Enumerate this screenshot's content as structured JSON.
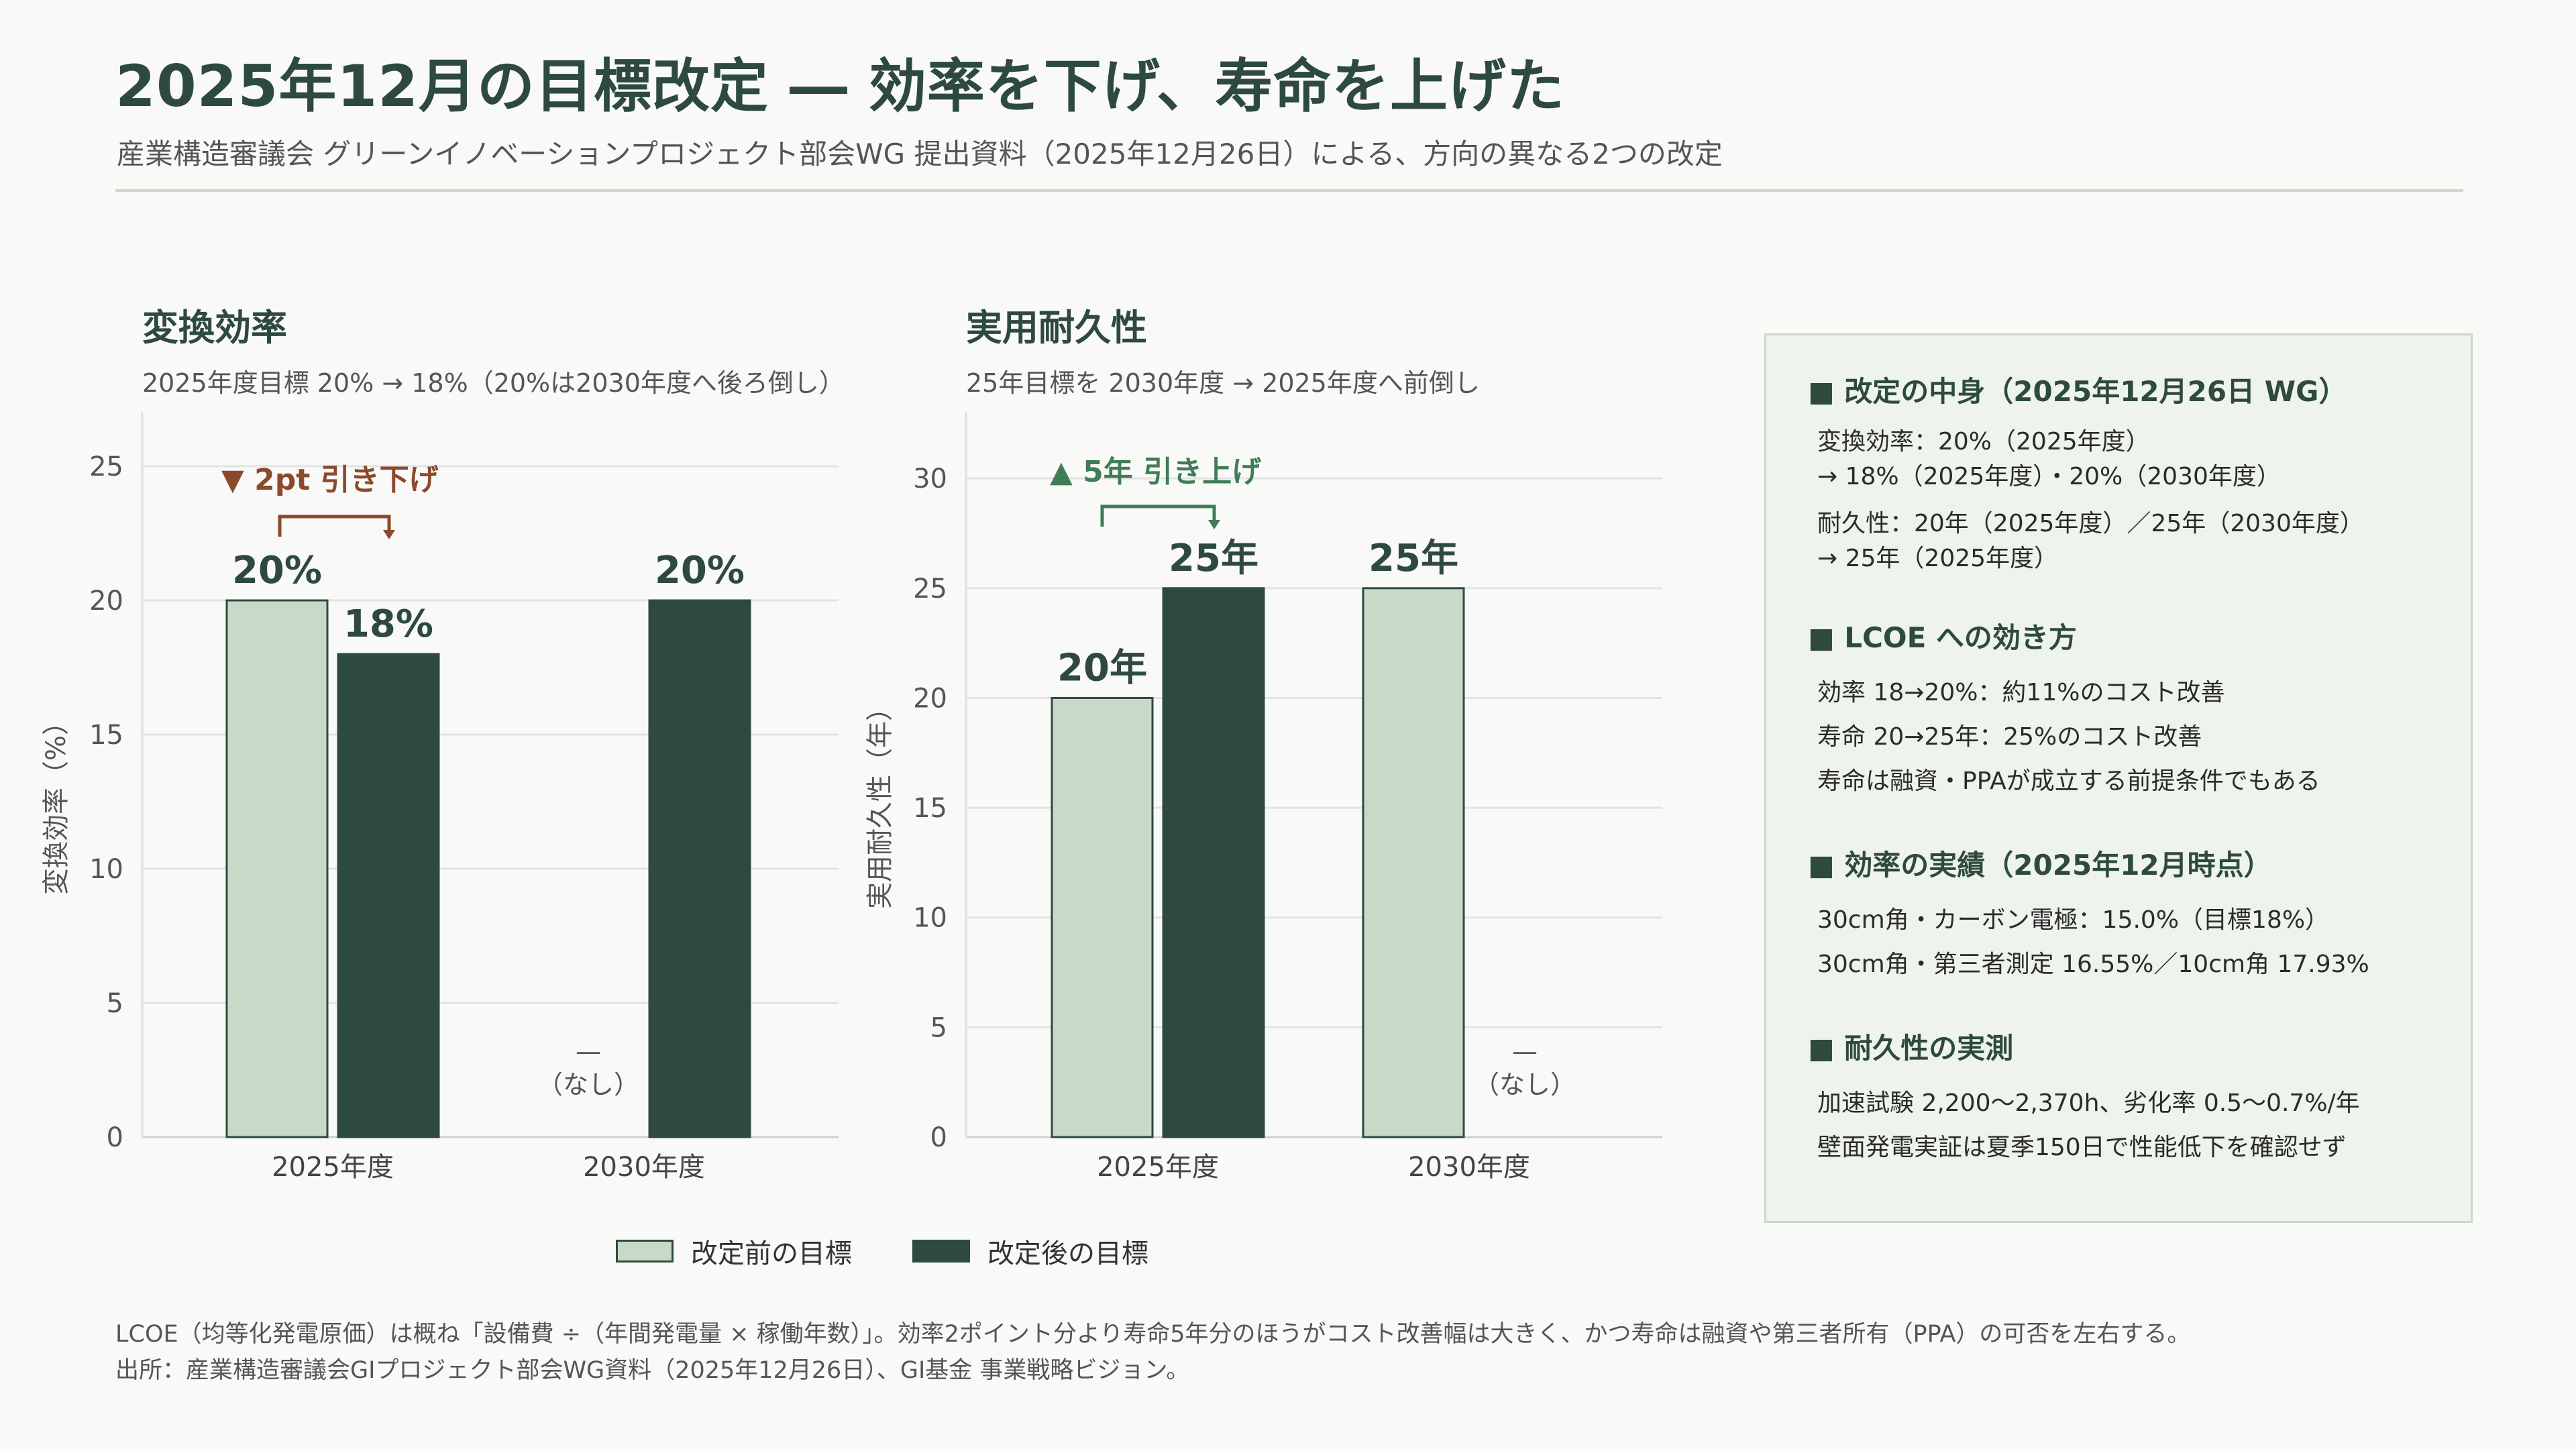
{
  "header": {
    "title": "2025年12月の目標改定 ― 効率を下げ、寿命を上げた",
    "subtitle": "産業構造審議会 グリーンイノベーションプロジェクト部会WG 提出資料（2025年12月26日）による、方向の異なる2つの改定"
  },
  "chart_data": [
    {
      "type": "bar",
      "title": "変換効率",
      "subtitle": "2025年度目標 20% → 18%（20%は2030年度へ後ろ倒し）",
      "ylabel": "変換効率（%）",
      "ylim": [
        0,
        27
      ],
      "yticks": [
        "0",
        "5",
        "10",
        "15",
        "20",
        "25"
      ],
      "categories": [
        "2025年度",
        "2030年度"
      ],
      "series": [
        {
          "name": "改定前の目標",
          "values": [
            20,
            null
          ],
          "labels": [
            "20%",
            null
          ]
        },
        {
          "name": "改定後の目標",
          "values": [
            18,
            20
          ],
          "labels": [
            "18%",
            "20%"
          ]
        }
      ],
      "missing_label": [
        "—",
        "（なし）"
      ],
      "annotation": {
        "text": "▼ 2pt 引き下げ",
        "color": "#8b4a2b"
      }
    },
    {
      "type": "bar",
      "title": "実用耐久性",
      "subtitle": "25年目標を 2030年度 → 2025年度へ前倒し",
      "ylabel": "実用耐久性（年）",
      "ylim": [
        0,
        33
      ],
      "yticks": [
        "0",
        "5",
        "10",
        "15",
        "20",
        "25",
        "30"
      ],
      "categories": [
        "2025年度",
        "2030年度"
      ],
      "series": [
        {
          "name": "改定前の目標",
          "values": [
            20,
            25
          ],
          "labels": [
            "20年",
            "25年"
          ]
        },
        {
          "name": "改定後の目標",
          "values": [
            25,
            null
          ],
          "labels": [
            "25年",
            null
          ]
        }
      ],
      "missing_label": [
        "—",
        "（なし）"
      ],
      "annotation": {
        "text": "▲ 5年 引き上げ",
        "color": "#3f7d56"
      }
    }
  ],
  "legend": [
    {
      "label": "改定前の目標",
      "color": "#c8d9ca"
    },
    {
      "label": "改定後の目標",
      "color": "#2e4a3e"
    }
  ],
  "panel": {
    "sections": [
      {
        "head": "■ 改定の中身（2025年12月26日 WG）",
        "lines": [
          "変換効率：20%（2025年度）",
          "→ 18%（2025年度）・20%（2030年度）",
          "",
          "耐久性：20年（2025年度）／25年（2030年度）",
          "→ 25年（2025年度）"
        ]
      },
      {
        "head": "■ LCOE への効き方",
        "lines": [
          "効率 18→20%：約11%のコスト改善",
          "寿命 20→25年：25%のコスト改善",
          "寿命は融資・PPAが成立する前提条件でもある"
        ]
      },
      {
        "head": "■ 効率の実績（2025年12月時点）",
        "lines": [
          "30cm角・カーボン電極：15.0%（目標18%）",
          "30cm角・第三者測定 16.55%／10cm角 17.93%"
        ]
      },
      {
        "head": "■ 耐久性の実測",
        "lines": [
          "加速試験 2,200〜2,370h、劣化率 0.5〜0.7%/年",
          "壁面発電実証は夏季150日で性能低下を確認せず"
        ]
      }
    ]
  },
  "footnote": {
    "line1": "LCOE（均等化発電原価）は概ね「設備費 ÷（年間発電量 × 稼働年数）」。効率2ポイント分より寿命5年分のほうがコスト改善幅は大きく、かつ寿命は融資や第三者所有（PPA）の可否を左右する。",
    "line2": "出所：産業構造審議会GIプロジェクト部会WG資料（2025年12月26日）、GI基金 事業戦略ビジョン。"
  },
  "colors": {
    "before": "#c8d9ca",
    "after": "#2e4a3e",
    "accent": "#2e4a3e",
    "grid": "#e3e3e3"
  }
}
